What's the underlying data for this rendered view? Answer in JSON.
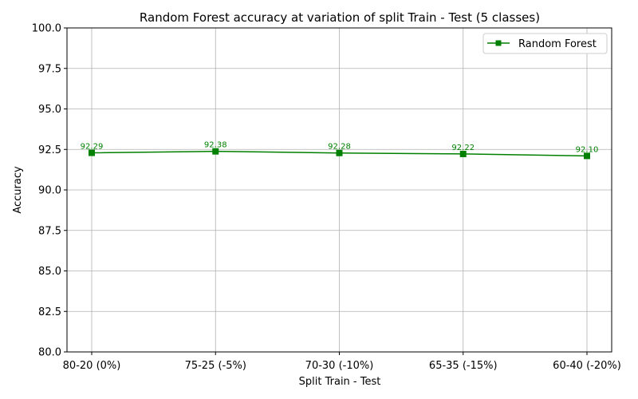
{
  "chart_data": {
    "type": "line",
    "title": "Random Forest accuracy at variation of split Train - Test (5 classes)",
    "xlabel": "Split Train - Test",
    "ylabel": "Accuracy",
    "categories": [
      "80-20 (0%)",
      "75-25 (-5%)",
      "70-30 (-10%)",
      "65-35 (-15%)",
      "60-40 (-20%)"
    ],
    "series": [
      {
        "name": "Random Forest",
        "values": [
          92.29,
          92.38,
          92.28,
          92.22,
          92.1
        ],
        "labels": [
          "92.29",
          "92.38",
          "92.28",
          "92.22",
          "92.10"
        ],
        "color": "#008000",
        "marker": "square"
      }
    ],
    "ylim": [
      80,
      100
    ],
    "yticks": [
      80.0,
      82.5,
      85.0,
      87.5,
      90.0,
      92.5,
      95.0,
      97.5,
      100.0
    ],
    "ytick_labels": [
      "80.0",
      "82.5",
      "85.0",
      "87.5",
      "90.0",
      "92.5",
      "95.0",
      "97.5",
      "100.0"
    ],
    "grid": true,
    "legend_position": "top-right"
  }
}
